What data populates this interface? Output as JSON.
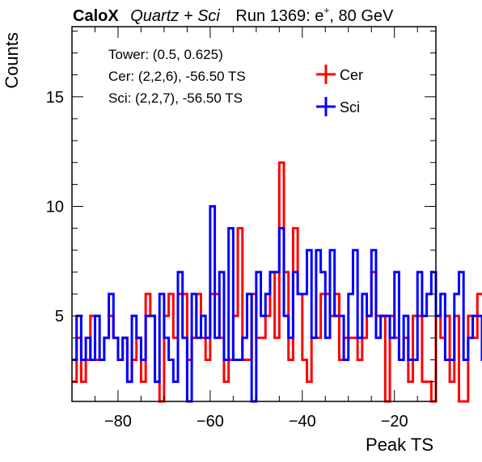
{
  "title": {
    "brand": "CaloX",
    "subtitle": "Quartz + Sci",
    "run": "Run 1369: e",
    "run_sup": "+",
    "beam": ", 80 GeV"
  },
  "info": {
    "tower": "Tower: (0.5, 0.625)",
    "cer": "Cer: (2,2,6), -56.50 TS",
    "sci": "Sci: (2,2,7), -56.50 TS"
  },
  "colors": {
    "cer": "#ff0000",
    "sci": "#0000ff",
    "axis": "#000000"
  },
  "chart_data": {
    "type": "line",
    "style": "step-histogram",
    "xlabel": "Peak TS",
    "ylabel": "Counts",
    "xlim": [
      -90,
      -11
    ],
    "ylim": [
      1.1,
      18.2
    ],
    "x_ticks": [
      -80,
      -60,
      -40,
      -20
    ],
    "x_tick_labels": [
      "−80",
      "−60",
      "−40",
      "−20"
    ],
    "y_ticks": [
      5,
      10,
      15
    ],
    "y_tick_labels": [
      "5",
      "10",
      "15"
    ],
    "bin_start": -90,
    "bin_width": 1,
    "legend_position": "top-right",
    "series": [
      {
        "name": "Cer",
        "color": "#ff0000",
        "values": [
          2,
          4,
          2,
          3,
          5,
          3,
          3,
          4,
          5,
          4,
          3,
          4,
          2,
          3,
          4,
          2,
          6,
          5,
          2,
          1,
          5,
          6,
          4,
          6,
          6,
          3,
          4,
          6,
          4,
          3,
          6,
          6,
          4,
          2,
          3,
          5,
          9,
          3,
          3,
          6,
          4,
          4,
          5,
          7,
          4,
          12,
          7,
          3,
          9,
          6,
          3,
          2,
          4,
          4,
          6,
          6,
          5,
          6,
          3,
          4,
          4,
          4,
          3,
          4,
          5,
          7,
          5,
          5,
          1,
          5,
          4,
          3,
          4,
          2,
          5,
          5,
          2,
          2,
          1,
          5,
          4,
          5,
          2,
          5,
          1,
          1,
          5,
          4,
          6,
          6
        ]
      },
      {
        "name": "Sci",
        "color": "#0000ff",
        "values": [
          3,
          5,
          3,
          4,
          3,
          5,
          3,
          4,
          6,
          4,
          3,
          4,
          2,
          5,
          4,
          3,
          5,
          5,
          2,
          6,
          4,
          3,
          2,
          7,
          4,
          1,
          6,
          4,
          5,
          4,
          10,
          4,
          7,
          3,
          9,
          3,
          3,
          4,
          6,
          1,
          7,
          5,
          6,
          7,
          7,
          9,
          5,
          4,
          7,
          6,
          6,
          8,
          4,
          8,
          7,
          4,
          8,
          5,
          5,
          3,
          6,
          8,
          4,
          6,
          5,
          8,
          4,
          5,
          5,
          4,
          7,
          3,
          5,
          3,
          3,
          7,
          5,
          6,
          7,
          5,
          6,
          3,
          3,
          6,
          7,
          3,
          4,
          5,
          5,
          3
        ]
      }
    ]
  }
}
